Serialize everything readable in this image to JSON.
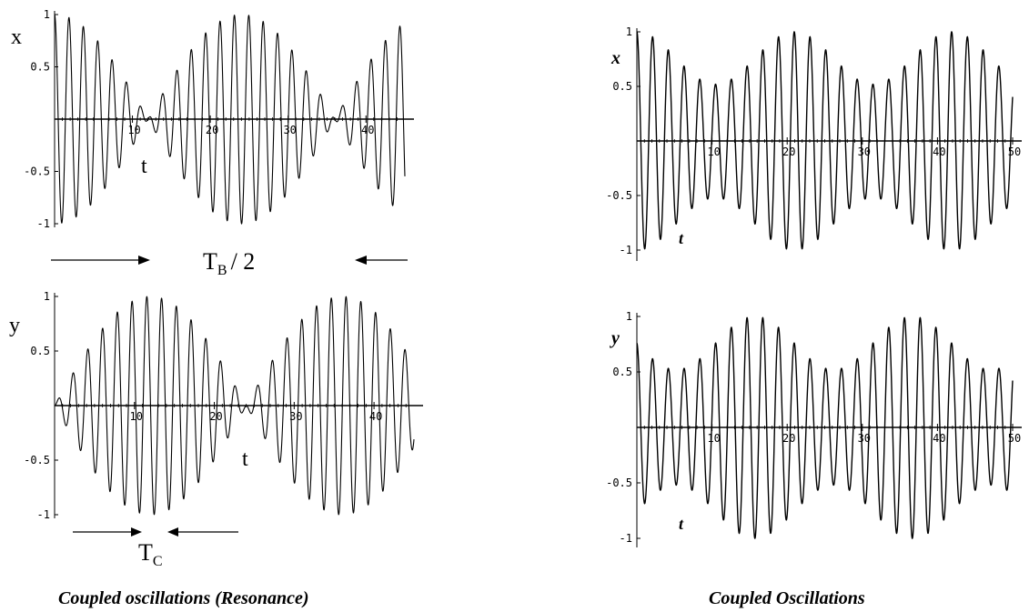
{
  "chart_data": [
    {
      "type": "line",
      "xlabel": "x",
      "ylabel": "t",
      "ylim": [
        -1,
        1
      ],
      "xlim": [
        0,
        45
      ],
      "x_ticks": [
        "10",
        "20",
        "30",
        "40"
      ],
      "y_ticks": [
        "1",
        "0.5",
        "-0.5",
        "-1"
      ],
      "series": [
        {
          "envelope_abs_cos": {
            "w_beat": 0.1309,
            "w_carrier": 3.4,
            "phase_beat": 0,
            "phase_carrier": 0.0,
            "amp": 1
          }
        }
      ]
    },
    {
      "type": "line",
      "xlabel": "y",
      "ylabel": "t",
      "ylim": [
        -1,
        1
      ],
      "xlim": [
        0,
        45
      ],
      "x_ticks": [
        "10",
        "20",
        "30",
        "40"
      ],
      "y_ticks": [
        "1",
        "0.5",
        "-0.5",
        "-1"
      ],
      "series": [
        {
          "envelope_abs_sin": {
            "w_beat": 0.1309,
            "w_carrier": 3.4,
            "phase_beat": 0,
            "phase_carrier": 0.0,
            "amp": 1
          }
        }
      ]
    },
    {
      "type": "line",
      "xlabel": "x",
      "ylabel": "t",
      "ylim": [
        -1,
        1
      ],
      "xlim": [
        0,
        50
      ],
      "x_ticks": [
        "10",
        "20",
        "30",
        "40",
        "50"
      ],
      "y_ticks": [
        "1",
        "0.5",
        "-0.5",
        "-1"
      ],
      "series": [
        {
          "partial_beat": {
            "w_beat": 0.3,
            "w_carrier": 3.0,
            "phase_beat": 0.0,
            "base": 0.76,
            "depth": 0.24
          }
        }
      ]
    },
    {
      "type": "line",
      "xlabel": "y",
      "ylabel": "t",
      "ylim": [
        -1,
        1
      ],
      "xlim": [
        0,
        50
      ],
      "x_ticks": [
        "10",
        "20",
        "30",
        "40",
        "50"
      ],
      "y_ticks": [
        "1",
        "0.5",
        "-0.5",
        "-1"
      ],
      "series": [
        {
          "partial_beat": {
            "w_beat": 0.3,
            "w_carrier": 3.0,
            "phase_beat": 1.5708,
            "base": 0.76,
            "depth": 0.24
          }
        }
      ]
    }
  ],
  "annotations": {
    "tb_main": "T",
    "tb_sub": "B",
    "tb_suffix": "/ 2",
    "tc_main": "T",
    "tc_sub": "C"
  },
  "captions": {
    "left": "Coupled oscillations   (Resonance)",
    "right": "Coupled Oscillations"
  }
}
